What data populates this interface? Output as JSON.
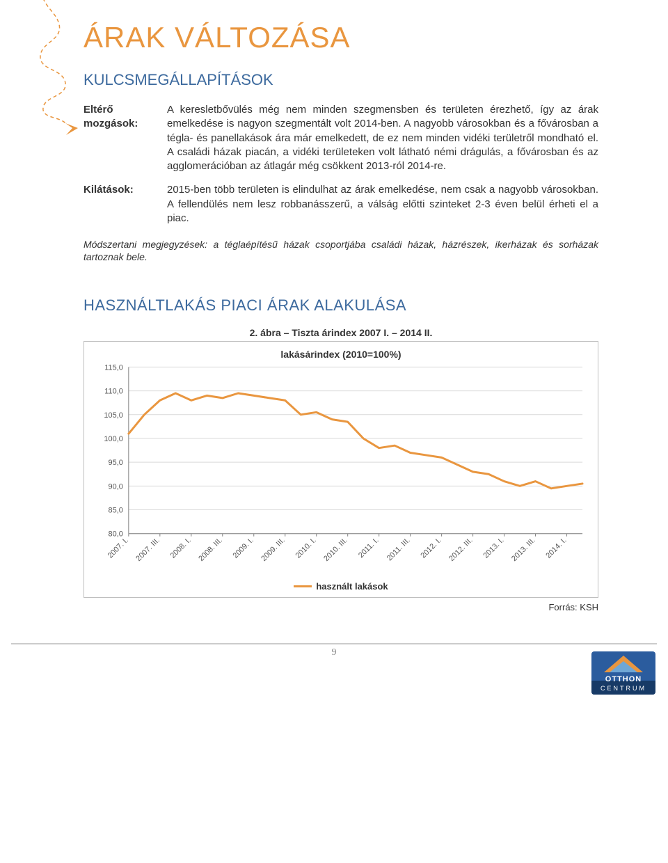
{
  "page": {
    "title": "ÁRAK VÁLTOZÁSA",
    "subtitle": "KULCSMEGÁLLAPÍTÁSOK",
    "key_findings": {
      "row1_label": "Eltérő mozgások:",
      "row1_text": "A keresletbővülés még nem minden szegmensben és területen érezhető, így az árak emelkedése is nagyon szegmentált volt 2014-ben. A nagyobb városokban és a fővárosban a tégla- és panellakások ára már emelkedett, de ez nem minden vidéki területről mondható el. A családi házak piacán, a vidéki területeken volt látható némi drágulás, a fővárosban és az agglomerációban az átlagár még csökkent 2013-ról 2014-re.",
      "row2_label": "Kilátások:",
      "row2_text": "2015-ben több területen is elindulhat az árak emelkedése, nem csak a nagyobb városokban. A fellendülés nem lesz robbanásszerű, a válság előtti szinteket 2-3 éven belül érheti el a piac."
    },
    "method_note": "Módszertani megjegyzések: a téglaépítésű házak csoportjába családi házak, házrészek, ikerházak és sorházak tartoznak bele.",
    "chart_heading": "HASZNÁLTLAKÁS PIACI ÁRAK ALAKULÁSA",
    "chart": {
      "type": "line",
      "caption": "2. ábra – Tiszta árindex 2007 I. – 2014 II.",
      "subtitle": "lakásárindex (2010=100%)",
      "x_labels": [
        "2007. I.",
        "2007. III.",
        "2008. I.",
        "2008. III.",
        "2009. I.",
        "2009. III.",
        "2010. I.",
        "2010. III.",
        "2011. I.",
        "2011. III.",
        "2012. I.",
        "2012. III.",
        "2013. I.",
        "2013. III.",
        "2014. I."
      ],
      "y_ticks": [
        80.0,
        85.0,
        90.0,
        95.0,
        100.0,
        105.0,
        110.0,
        115.0
      ],
      "y_tick_labels": [
        "80,0",
        "85,0",
        "90,0",
        "95,0",
        "100,0",
        "105,0",
        "110,0",
        "115,0"
      ],
      "ylim": [
        80,
        115
      ],
      "series": {
        "name": "használt lakások",
        "color": "#E9963F",
        "line_width": 3,
        "values": [
          101.0,
          105.0,
          108.0,
          109.5,
          108.0,
          109.0,
          108.5,
          109.5,
          109.0,
          108.5,
          108.0,
          105.0,
          105.5,
          104.0,
          103.5,
          100.0,
          98.0,
          98.5,
          97.0,
          96.5,
          96.0,
          94.5,
          93.0,
          92.5,
          91.0,
          90.0,
          91.0,
          89.5,
          90.0,
          90.5
        ]
      },
      "background_color": "#ffffff",
      "grid_color": "#d9d9d9",
      "axis_color": "#808080",
      "tick_fontsize": 11,
      "x_label_rotation": -45
    },
    "legend_label": "használt lakások",
    "source": "Forrás: KSH",
    "page_number": "9"
  },
  "colors": {
    "accent_orange": "#E9963F",
    "heading_blue": "#3D6A9E",
    "logo_blue1": "#2B5C9E",
    "logo_blue2": "#173A66",
    "logo_orange": "#E9963F",
    "logo_text": "#ffffff"
  }
}
